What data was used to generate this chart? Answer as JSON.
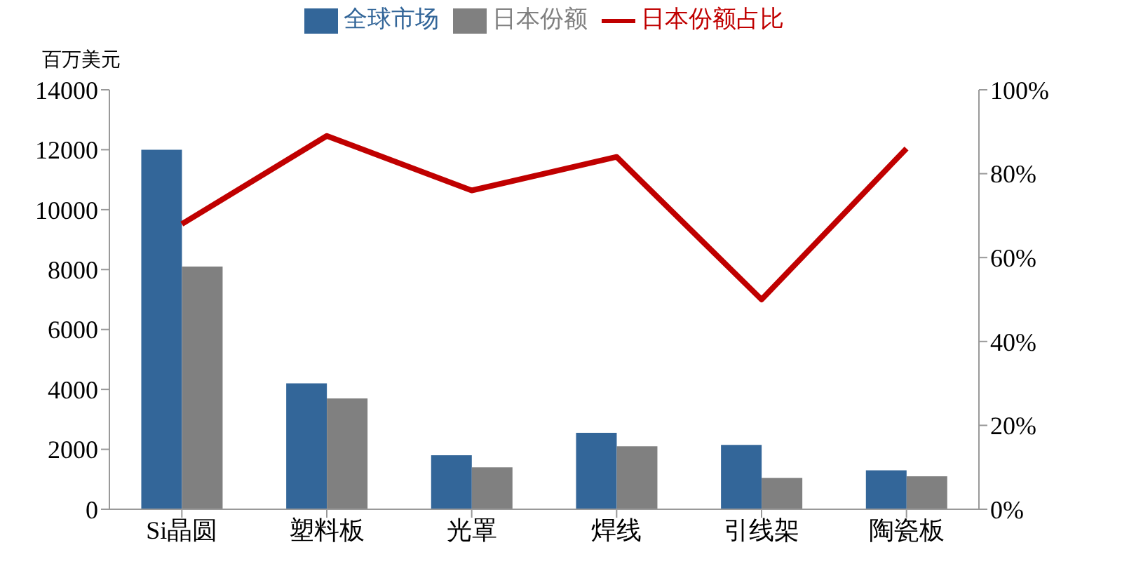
{
  "chart_data": {
    "type": "bar",
    "ylabel": "百万美元",
    "categories": [
      "Si晶圆",
      "塑料板",
      "光罩",
      "焊线",
      "引线架",
      "陶瓷板"
    ],
    "series": [
      {
        "name": "全球市场",
        "color": "#336699",
        "values": [
          12000,
          4200,
          1800,
          2550,
          2150,
          1300
        ]
      },
      {
        "name": "日本份额",
        "color": "#808080",
        "values": [
          8100,
          3700,
          1400,
          2100,
          1050,
          1100
        ]
      },
      {
        "name": "日本份额占比",
        "type": "line",
        "axis": "y2",
        "color": "#c00000",
        "values": [
          68,
          89,
          76,
          84,
          50,
          86
        ]
      }
    ],
    "ylim": [
      0,
      14000
    ],
    "yticks": [
      0,
      2000,
      4000,
      6000,
      8000,
      10000,
      12000,
      14000
    ],
    "y2lim": [
      0,
      100
    ],
    "y2ticks": [
      {
        "value": 0,
        "label": "0%"
      },
      {
        "value": 20,
        "label": "20%"
      },
      {
        "value": 40,
        "label": "40%"
      },
      {
        "value": 60,
        "label": "60%"
      },
      {
        "value": 80,
        "label": "80%"
      },
      {
        "value": 100,
        "label": "100%"
      }
    ],
    "grid": false,
    "legend": "top",
    "marker": "none"
  }
}
